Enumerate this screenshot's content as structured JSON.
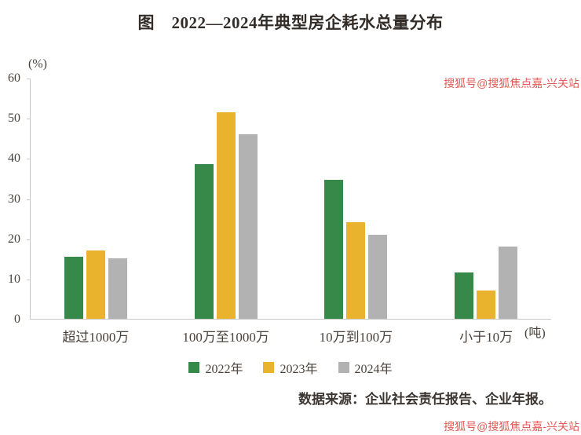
{
  "chart_data": {
    "type": "bar",
    "title": "图　2022—2024年典型房企耗水总量分布",
    "categories": [
      "超过1000万",
      "100万至1000万",
      "10万到100万",
      "小于10万"
    ],
    "series": [
      {
        "name": "2022年",
        "color": "#37894a",
        "values": [
          15.5,
          38.5,
          34.5,
          11.5
        ]
      },
      {
        "name": "2023年",
        "color": "#eab32d",
        "values": [
          17,
          51.5,
          24,
          7
        ]
      },
      {
        "name": "2024年",
        "color": "#b2b2b2",
        "values": [
          15,
          46,
          21,
          18
        ]
      }
    ],
    "ylabel": "(%)",
    "xunit": "(吨)",
    "ylim": [
      0,
      60
    ],
    "ytick_step": 10,
    "grid": false,
    "legend_position": "bottom"
  },
  "source": "数据来源：企业社会责任报告、企业年报。",
  "watermarks": {
    "top": "搜狐号@搜狐焦点嘉-兴关站",
    "bottom": "搜狐号@搜狐焦点嘉-兴关站"
  }
}
